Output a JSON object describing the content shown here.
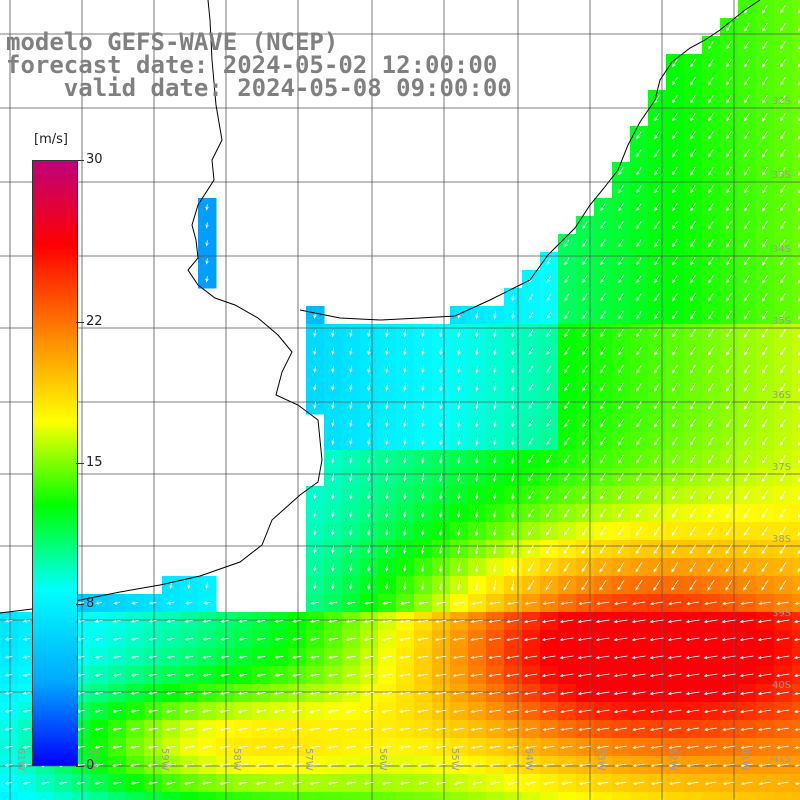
{
  "title": {
    "line1": "modelo GEFS-WAVE (NCEP)",
    "line2": "forecast date: 2024-05-02 12:00:00",
    "line3": "valid date: 2024-05-08 09:00:00"
  },
  "colorbar": {
    "unit": "[m/s]",
    "min": 0,
    "max": 30,
    "ticks": [
      {
        "label": "30",
        "value": 30
      },
      {
        "label": "22",
        "value": 22
      },
      {
        "label": "15",
        "value": 15
      },
      {
        "label": "8",
        "value": 8
      },
      {
        "label": "0",
        "value": 0
      }
    ],
    "colors": [
      "#0000ff",
      "#00aaff",
      "#00ffff",
      "#00ff00",
      "#ffff00",
      "#ff8800",
      "#ff0000",
      "#c0007a"
    ]
  },
  "map": {
    "lon_range": [
      -62,
      -50
    ],
    "lat_range": [
      -41,
      -30
    ],
    "lat_labels": [
      "32S",
      "33S",
      "34S",
      "35S",
      "36S",
      "37S",
      "38S",
      "39S",
      "40S",
      "41S"
    ],
    "lon_labels": [
      "61W",
      "60W",
      "59W",
      "58W",
      "57W",
      "56W",
      "55W",
      "54W",
      "53W",
      "52W",
      "51W"
    ],
    "land_color": "#ffffff",
    "coast_color": "#000000",
    "grid_color": "#555555",
    "arrow_color": "#ffffff"
  }
}
